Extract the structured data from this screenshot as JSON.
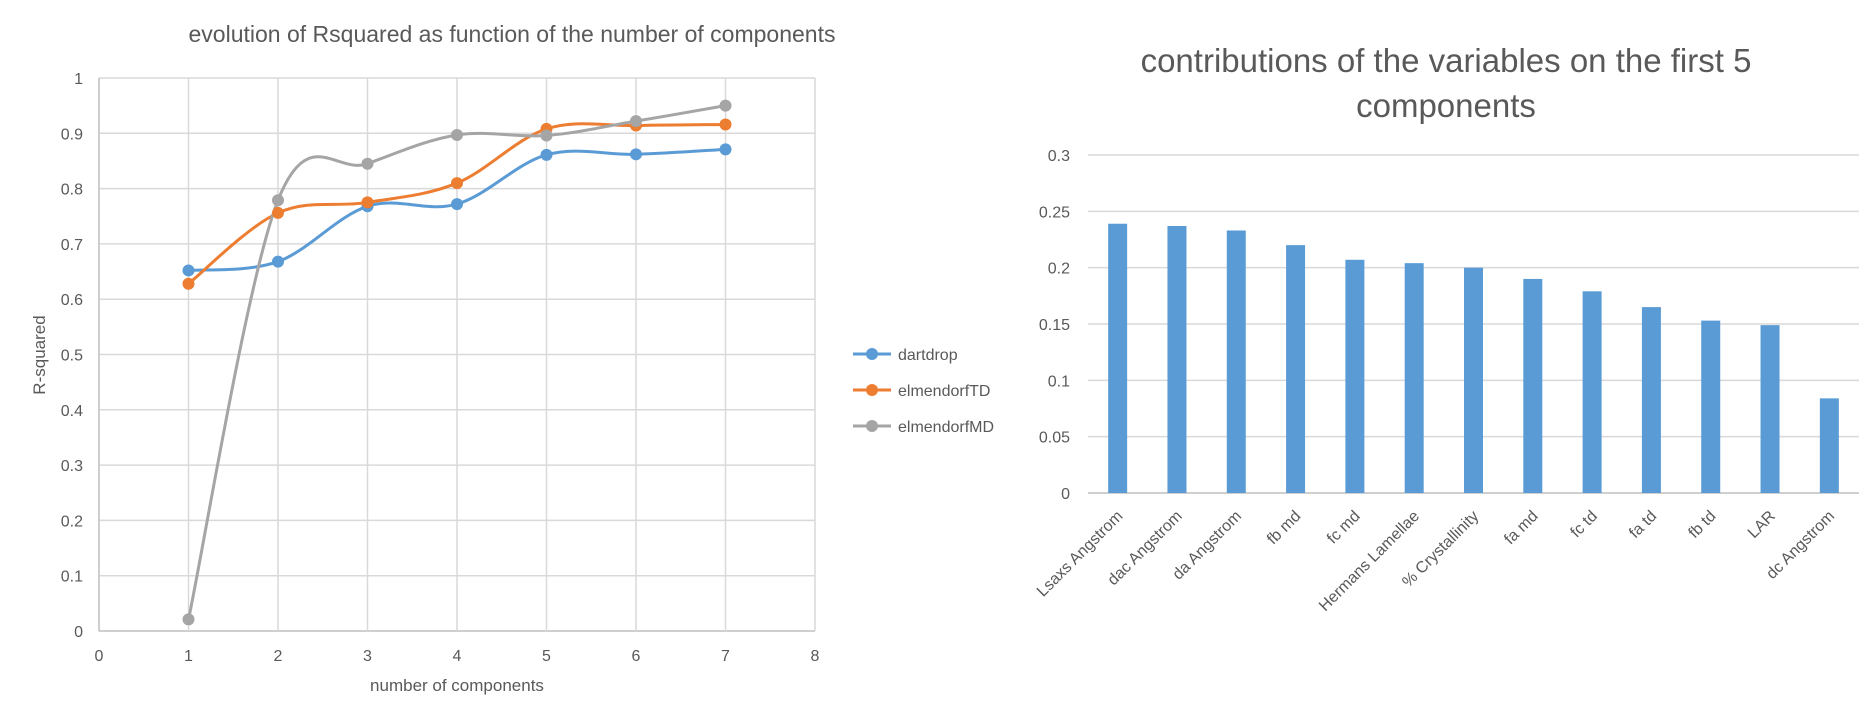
{
  "colors": {
    "dartdrop": "#5B9BD5",
    "elmendorfTD": "#ED7D31",
    "elmendorfMD": "#A5A5A5",
    "bar": "#5B9BD5",
    "grid": "#D9D9D9",
    "axis_text": "#595959",
    "title_text": "#595959"
  },
  "chart_data": [
    {
      "type": "scatter",
      "title": "evolution of Rsquared as function of the number of components",
      "xlabel": "number of components",
      "ylabel": "R-squared",
      "xlim": [
        0,
        8
      ],
      "ylim": [
        0,
        1
      ],
      "x_ticks": [
        "0",
        "1",
        "2",
        "3",
        "4",
        "5",
        "6",
        "7",
        "8"
      ],
      "y_ticks": [
        "0",
        "0.1",
        "0.2",
        "0.3",
        "0.4",
        "0.5",
        "0.6",
        "0.7",
        "0.8",
        "0.9",
        "1"
      ],
      "grid": true,
      "smoothed_lines": true,
      "legend_position": "right",
      "series": [
        {
          "name": "dartdrop",
          "color": "#5B9BD5",
          "x": [
            1,
            2,
            3,
            4,
            5,
            6,
            7
          ],
          "y": [
            0.652,
            0.668,
            0.768,
            0.772,
            0.861,
            0.862,
            0.871
          ]
        },
        {
          "name": "elmendorfTD",
          "color": "#ED7D31",
          "x": [
            1,
            2,
            3,
            4,
            5,
            6,
            7
          ],
          "y": [
            0.628,
            0.756,
            0.775,
            0.81,
            0.908,
            0.914,
            0.916
          ]
        },
        {
          "name": "elmendorfMD",
          "color": "#A5A5A5",
          "x": [
            1,
            2,
            3,
            4,
            5,
            6,
            7
          ],
          "y": [
            0.021,
            0.779,
            0.845,
            0.897,
            0.896,
            0.922,
            0.95
          ]
        }
      ]
    },
    {
      "type": "bar",
      "title": [
        "contributions of the variables on the first 5",
        "components"
      ],
      "xlabel": "",
      "ylabel": "",
      "ylim": [
        0,
        0.3
      ],
      "y_ticks": [
        "0",
        "0.05",
        "0.1",
        "0.15",
        "0.2",
        "0.25",
        "0.3"
      ],
      "grid": true,
      "categories": [
        "Lsaxs Angstrom",
        "dac Angstrom",
        "da Angstrom",
        "fb md",
        "fc md",
        "Hermans Lamellae",
        "% Crystallinity",
        "fa md",
        "fc td",
        "fa td",
        "fb td",
        "LAR",
        "dc Angstrom"
      ],
      "values": [
        0.239,
        0.237,
        0.233,
        0.22,
        0.207,
        0.204,
        0.2,
        0.19,
        0.179,
        0.165,
        0.153,
        0.149,
        0.084
      ]
    }
  ]
}
